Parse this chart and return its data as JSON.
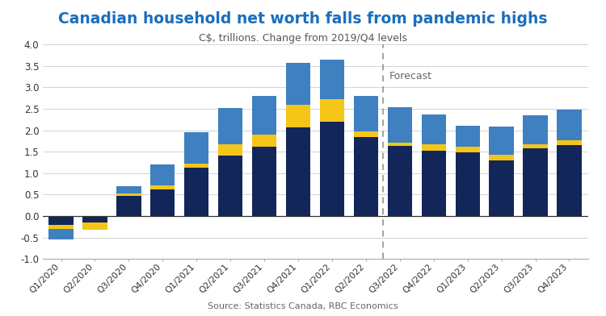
{
  "title": "Canadian household net worth falls from pandemic highs",
  "subtitle": "C$, trillions. Change from 2019/Q4 levels",
  "source": "Source: Statistics Canada, RBC Economics",
  "categories": [
    "Q1/2020",
    "Q2/2020",
    "Q3/2020",
    "Q4/2020",
    "Q1/2021",
    "Q2/2021",
    "Q3/2021",
    "Q4/2021",
    "Q1/2022",
    "Q2/2022",
    "Q3/2022",
    "Q4/2022",
    "Q1/2023",
    "Q2/2023",
    "Q3/2023",
    "Q4/2023"
  ],
  "equity": [
    -0.2,
    -0.15,
    0.47,
    0.63,
    1.13,
    1.4,
    1.62,
    2.07,
    2.2,
    1.85,
    1.63,
    1.52,
    1.48,
    1.3,
    1.57,
    1.65
  ],
  "stocks": [
    -0.1,
    -0.17,
    0.05,
    0.08,
    0.1,
    0.27,
    0.27,
    0.52,
    0.52,
    0.12,
    0.08,
    0.15,
    0.13,
    0.12,
    0.1,
    0.12
  ],
  "other": [
    -0.25,
    0.0,
    0.18,
    0.5,
    0.72,
    0.85,
    0.9,
    0.97,
    0.93,
    0.82,
    0.82,
    0.7,
    0.49,
    0.67,
    0.67,
    0.7
  ],
  "forecast_after_index": 10,
  "forecast_label": "Forecast",
  "ylim": [
    -1.0,
    4.0
  ],
  "yticks": [
    -1.0,
    -0.5,
    0.0,
    0.5,
    1.0,
    1.5,
    2.0,
    2.5,
    3.0,
    3.5,
    4.0
  ],
  "color_equity": "#12265a",
  "color_stocks": "#f5c518",
  "color_other": "#3e80c0",
  "title_color": "#1a6ebd",
  "subtitle_color": "#555555",
  "source_color": "#666666",
  "bg_color": "#ffffff",
  "grid_color": "#cccccc"
}
